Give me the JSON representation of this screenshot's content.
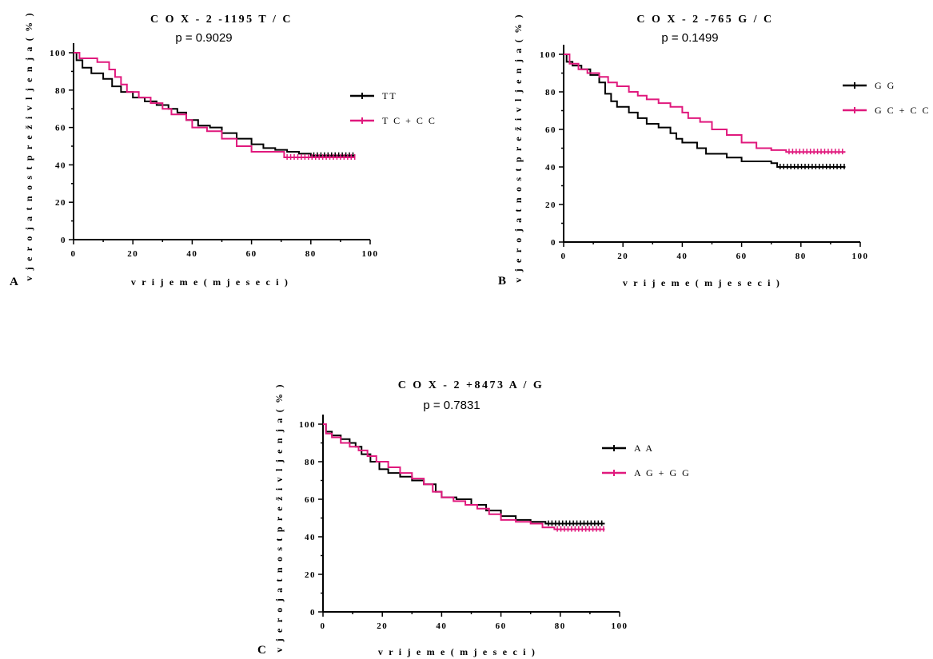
{
  "colors": {
    "series1": "#000000",
    "series2": "#e0197d"
  },
  "chart_data": [
    {
      "type": "line",
      "panel_label": "A",
      "title": "C O X - 2  -1195  T / C",
      "subtitle": "p =  0.9029",
      "xlabel": "v r i j e m  e   ( m  j e s e c i )",
      "ylabel": "v j e r o j a t n o s t  p r e ž i v l j e n j a  ( % )",
      "xlim": [
        0,
        100
      ],
      "ylim": [
        0,
        100
      ],
      "xticks": [
        0,
        20,
        40,
        60,
        80,
        100
      ],
      "yticks": [
        0,
        20,
        40,
        60,
        80,
        100
      ],
      "legend_position": "right",
      "series": [
        {
          "name": "TT",
          "color": "#000000",
          "points": [
            [
              0,
              100
            ],
            [
              1,
              96
            ],
            [
              3,
              92
            ],
            [
              6,
              89
            ],
            [
              10,
              86
            ],
            [
              13,
              82
            ],
            [
              16,
              79
            ],
            [
              20,
              76
            ],
            [
              24,
              74
            ],
            [
              28,
              72
            ],
            [
              32,
              70
            ],
            [
              35,
              68
            ],
            [
              38,
              64
            ],
            [
              42,
              61
            ],
            [
              46,
              60
            ],
            [
              50,
              57
            ],
            [
              55,
              54
            ],
            [
              60,
              51
            ],
            [
              64,
              49
            ],
            [
              68,
              48
            ],
            [
              72,
              47
            ],
            [
              76,
              46
            ],
            [
              80,
              45
            ],
            [
              95,
              45
            ]
          ]
        },
        {
          "name": "T C + C C",
          "color": "#e0197d",
          "points": [
            [
              0,
              100
            ],
            [
              2,
              97
            ],
            [
              8,
              95
            ],
            [
              12,
              91
            ],
            [
              14,
              87
            ],
            [
              16,
              83
            ],
            [
              18,
              79
            ],
            [
              22,
              76
            ],
            [
              26,
              73
            ],
            [
              30,
              70
            ],
            [
              33,
              67
            ],
            [
              38,
              64
            ],
            [
              40,
              60
            ],
            [
              45,
              58
            ],
            [
              50,
              54
            ],
            [
              55,
              50
            ],
            [
              60,
              47
            ],
            [
              71,
              44
            ],
            [
              95,
              44
            ]
          ]
        }
      ]
    },
    {
      "type": "line",
      "panel_label": "B",
      "title": "C O X - 2  -765  G / C",
      "subtitle": "p =  0.1499",
      "xlabel": "v r i j e m  e   ( m  j e s e c i )",
      "ylabel": "v j e r o j a t n o s t  p r e ž i v l j e n j a  ( % )",
      "xlim": [
        0,
        100
      ],
      "ylim": [
        0,
        100
      ],
      "xticks": [
        0,
        20,
        40,
        60,
        80,
        100
      ],
      "yticks": [
        0,
        20,
        40,
        60,
        80,
        100
      ],
      "legend_position": "right",
      "series": [
        {
          "name": "G G",
          "color": "#000000",
          "points": [
            [
              0,
              100
            ],
            [
              1,
              96
            ],
            [
              3,
              94
            ],
            [
              6,
              92
            ],
            [
              9,
              89
            ],
            [
              12,
              85
            ],
            [
              14,
              79
            ],
            [
              16,
              75
            ],
            [
              18,
              72
            ],
            [
              22,
              69
            ],
            [
              25,
              66
            ],
            [
              28,
              63
            ],
            [
              32,
              61
            ],
            [
              36,
              58
            ],
            [
              38,
              55
            ],
            [
              40,
              53
            ],
            [
              45,
              50
            ],
            [
              48,
              47
            ],
            [
              55,
              45
            ],
            [
              60,
              43
            ],
            [
              70,
              42
            ],
            [
              72,
              40
            ],
            [
              95,
              40
            ]
          ]
        },
        {
          "name": "G C + C C",
          "color": "#e0197d",
          "points": [
            [
              0,
              100
            ],
            [
              2,
              95
            ],
            [
              5,
              92
            ],
            [
              8,
              90
            ],
            [
              12,
              88
            ],
            [
              15,
              85
            ],
            [
              18,
              83
            ],
            [
              22,
              80
            ],
            [
              25,
              78
            ],
            [
              28,
              76
            ],
            [
              32,
              74
            ],
            [
              36,
              72
            ],
            [
              40,
              69
            ],
            [
              42,
              66
            ],
            [
              46,
              64
            ],
            [
              50,
              60
            ],
            [
              55,
              57
            ],
            [
              60,
              53
            ],
            [
              65,
              50
            ],
            [
              70,
              49
            ],
            [
              75,
              48
            ],
            [
              95,
              48
            ]
          ]
        }
      ]
    },
    {
      "type": "line",
      "panel_label": "C",
      "title": "C O X - 2  +8473  A / G",
      "subtitle": "p =  0.7831",
      "xlabel": "v r i j e m  e   ( m  j e s e c i )",
      "ylabel": "v j e r o j a t n o s t  p r e ž i v l j e n j a  ( % )",
      "xlim": [
        0,
        100
      ],
      "ylim": [
        0,
        100
      ],
      "xticks": [
        0,
        20,
        40,
        60,
        80,
        100
      ],
      "yticks": [
        0,
        20,
        40,
        60,
        80,
        100
      ],
      "legend_position": "right",
      "series": [
        {
          "name": "A A",
          "color": "#000000",
          "points": [
            [
              0,
              100
            ],
            [
              1,
              96
            ],
            [
              3,
              94
            ],
            [
              6,
              92
            ],
            [
              9,
              90
            ],
            [
              11,
              88
            ],
            [
              13,
              84
            ],
            [
              16,
              80
            ],
            [
              19,
              76
            ],
            [
              22,
              74
            ],
            [
              26,
              72
            ],
            [
              30,
              70
            ],
            [
              34,
              68
            ],
            [
              38,
              64
            ],
            [
              40,
              61
            ],
            [
              45,
              60
            ],
            [
              50,
              57
            ],
            [
              55,
              54
            ],
            [
              60,
              51
            ],
            [
              65,
              49
            ],
            [
              70,
              48
            ],
            [
              75,
              47
            ],
            [
              95,
              47
            ]
          ]
        },
        {
          "name": "A G + G G",
          "color": "#e0197d",
          "points": [
            [
              0,
              100
            ],
            [
              1,
              95
            ],
            [
              3,
              93
            ],
            [
              6,
              90
            ],
            [
              9,
              88
            ],
            [
              12,
              86
            ],
            [
              15,
              83
            ],
            [
              18,
              80
            ],
            [
              22,
              77
            ],
            [
              26,
              74
            ],
            [
              30,
              71
            ],
            [
              34,
              68
            ],
            [
              37,
              64
            ],
            [
              40,
              61
            ],
            [
              44,
              59
            ],
            [
              48,
              57
            ],
            [
              52,
              55
            ],
            [
              56,
              52
            ],
            [
              60,
              49
            ],
            [
              65,
              48
            ],
            [
              70,
              47
            ],
            [
              74,
              45
            ],
            [
              78,
              44
            ],
            [
              95,
              44
            ]
          ]
        }
      ]
    }
  ]
}
